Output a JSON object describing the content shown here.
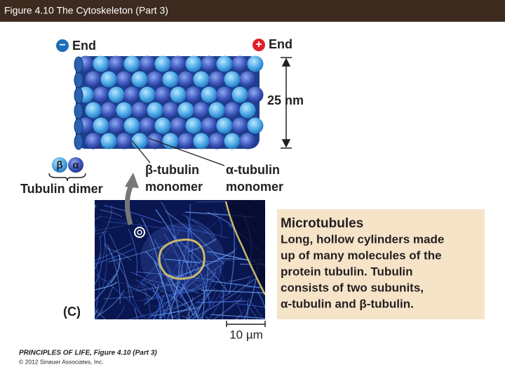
{
  "header": {
    "title": "Figure 4.10  The Cytoskeleton (Part 3)"
  },
  "diagram": {
    "minus_sign": "−",
    "minus_end": "End",
    "plus_sign": "+",
    "plus_end": "End",
    "diameter": "25 nm",
    "dimer_beta": "β",
    "dimer_alpha": "α",
    "dimer_label": "Tubulin dimer",
    "beta_monomer": [
      "β-tubulin",
      "monomer"
    ],
    "alpha_monomer": [
      "α-tubulin",
      "monomer"
    ],
    "panel": "(C)",
    "scale": "10 µm"
  },
  "info_box": {
    "title": "Microtubules",
    "lines": [
      "Long, hollow cylinders made",
      "up of many molecules of the",
      "protein tubulin. Tubulin",
      "consists of two subunits,",
      "α-tubulin and β-tubulin."
    ]
  },
  "footer": {
    "credit": "PRINCIPLES OF LIFE, Figure 4.10 (Part 3)",
    "copyright": "© 2012 Sinauer Associates, Inc."
  }
}
